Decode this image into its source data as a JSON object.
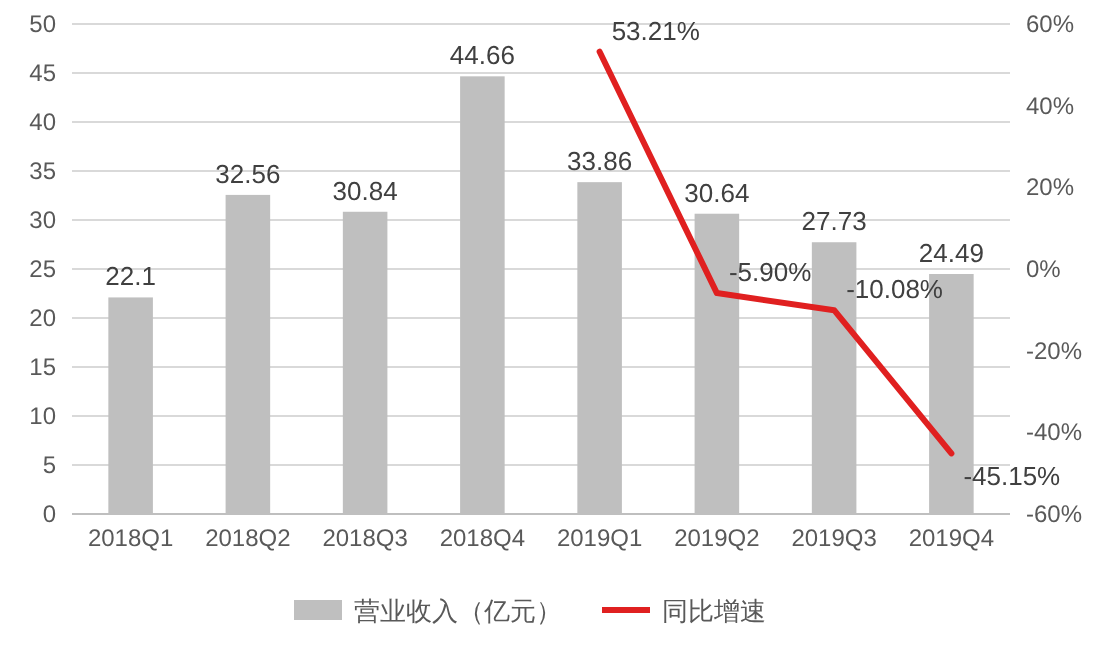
{
  "chart_data": {
    "type": "bar",
    "categories": [
      "2018Q1",
      "2018Q2",
      "2018Q3",
      "2018Q4",
      "2019Q1",
      "2019Q2",
      "2019Q3",
      "2019Q4"
    ],
    "series": [
      {
        "name": "营业收入（亿元）",
        "color": "#bfbfbf",
        "values": [
          22.1,
          32.56,
          30.84,
          44.66,
          33.86,
          30.64,
          27.73,
          24.49
        ],
        "value_labels": [
          "22.1",
          "32.56",
          "30.84",
          "44.66",
          "33.86",
          "30.64",
          "27.73",
          "24.49"
        ]
      },
      {
        "name": "同比增速",
        "type": "line",
        "axis": "y2",
        "color": "#e02020",
        "values": [
          null,
          null,
          null,
          null,
          53.21,
          -5.9,
          -10.08,
          -45.15
        ],
        "value_labels": [
          null,
          null,
          null,
          null,
          "53.21%",
          "-5.90%",
          "-10.08%",
          "-45.15%"
        ]
      }
    ],
    "ylim": [
      0,
      50
    ],
    "yticks": [
      0,
      5,
      10,
      15,
      20,
      25,
      30,
      35,
      40,
      45,
      50
    ],
    "y2lim": [
      -60,
      60
    ],
    "y2ticks": [
      {
        "value": -60,
        "label": "-60%"
      },
      {
        "value": -40,
        "label": "-40%"
      },
      {
        "value": -20,
        "label": "-20%"
      },
      {
        "value": 0,
        "label": "0%"
      },
      {
        "value": 20,
        "label": "20%"
      },
      {
        "value": 40,
        "label": "40%"
      },
      {
        "value": 60,
        "label": "60%"
      }
    ],
    "grid": "y",
    "legend": "bottom",
    "marker": "none",
    "line_style": "solid"
  }
}
